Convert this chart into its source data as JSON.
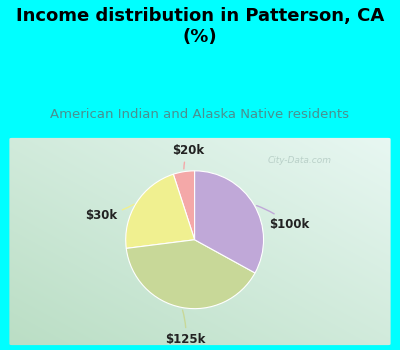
{
  "title": "Income distribution in Patterson, CA\n(%)",
  "subtitle": "American Indian and Alaska Native residents",
  "title_color": "#000000",
  "subtitle_color": "#4a9090",
  "header_bg": "#00ffff",
  "chart_bg_colors": [
    "#e8f8f0",
    "#c8e8d8",
    "#b8e0c8"
  ],
  "labels": [
    "$20k",
    "$30k",
    "$125k",
    "$100k"
  ],
  "sizes": [
    5,
    22,
    40,
    33
  ],
  "colors": [
    "#f4a8a8",
    "#f0f090",
    "#c8d898",
    "#c0a8d8"
  ],
  "startangle": 90,
  "watermark": "City-Data.com",
  "title_fontsize": 13,
  "subtitle_fontsize": 9.5,
  "label_fontsize": 8.5
}
